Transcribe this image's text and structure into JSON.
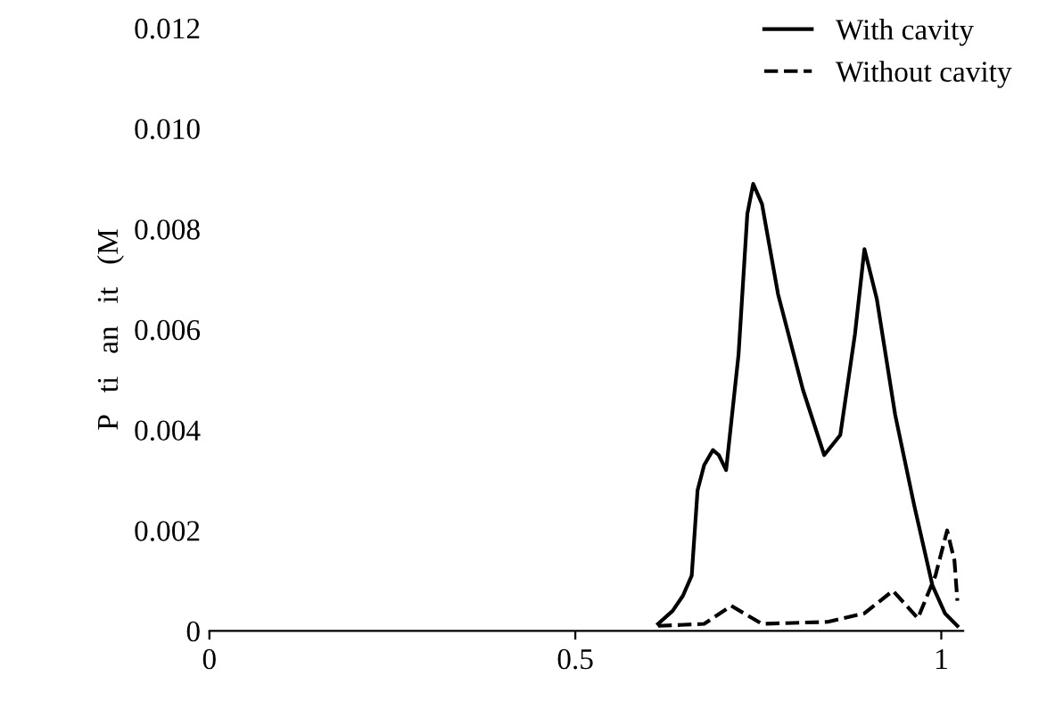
{
  "chart_data": {
    "type": "line",
    "ylabel": "P   ti   an   it   (M",
    "xlim": [
      0,
      1.03
    ],
    "xticks": [
      0,
      0.5,
      1
    ],
    "ylim": [
      0,
      0.012
    ],
    "yticks": [
      0,
      0.002,
      {
        "value": 0.004,
        "label": "0.004"
      },
      {
        "value": 0.006,
        "label": "0.006"
      },
      {
        "value": 0.008,
        "label": "0.008"
      },
      {
        "value": 0.01,
        "label": "0.010"
      },
      {
        "value": 0.012,
        "label": "0.012"
      }
    ],
    "legend": "top right",
    "grid": false,
    "series": [
      {
        "name": "With cavity",
        "color": "#000000",
        "line_style": "solid",
        "x": [
          0.613,
          0.633,
          0.647,
          0.659,
          0.667,
          0.676,
          0.688,
          0.696,
          0.706,
          0.723,
          0.735,
          0.743,
          0.755,
          0.777,
          0.811,
          0.84,
          0.862,
          0.882,
          0.895,
          0.912,
          0.937,
          0.963,
          0.988,
          1.005,
          1.022
        ],
        "values": [
          0.00014,
          0.0004,
          0.0007,
          0.0011,
          0.0028,
          0.0033,
          0.0036,
          0.0035,
          0.0032,
          0.0055,
          0.0083,
          0.0089,
          0.0085,
          0.0067,
          0.0048,
          0.0035,
          0.0039,
          0.0059,
          0.0076,
          0.0066,
          0.0043,
          0.0025,
          0.0009,
          0.00035,
          0.0001
        ]
      },
      {
        "name": "Without cavity",
        "color": "#000000",
        "line_style": "dashed",
        "x": [
          0.613,
          0.676,
          0.713,
          0.755,
          0.845,
          0.895,
          0.934,
          0.968,
          0.992,
          1.008,
          1.018,
          1.022
        ],
        "values": [
          0.0001,
          0.00014,
          0.0005,
          0.00014,
          0.00018,
          0.00035,
          0.0008,
          0.00025,
          0.0011,
          0.002,
          0.0014,
          0.0006
        ]
      }
    ]
  }
}
